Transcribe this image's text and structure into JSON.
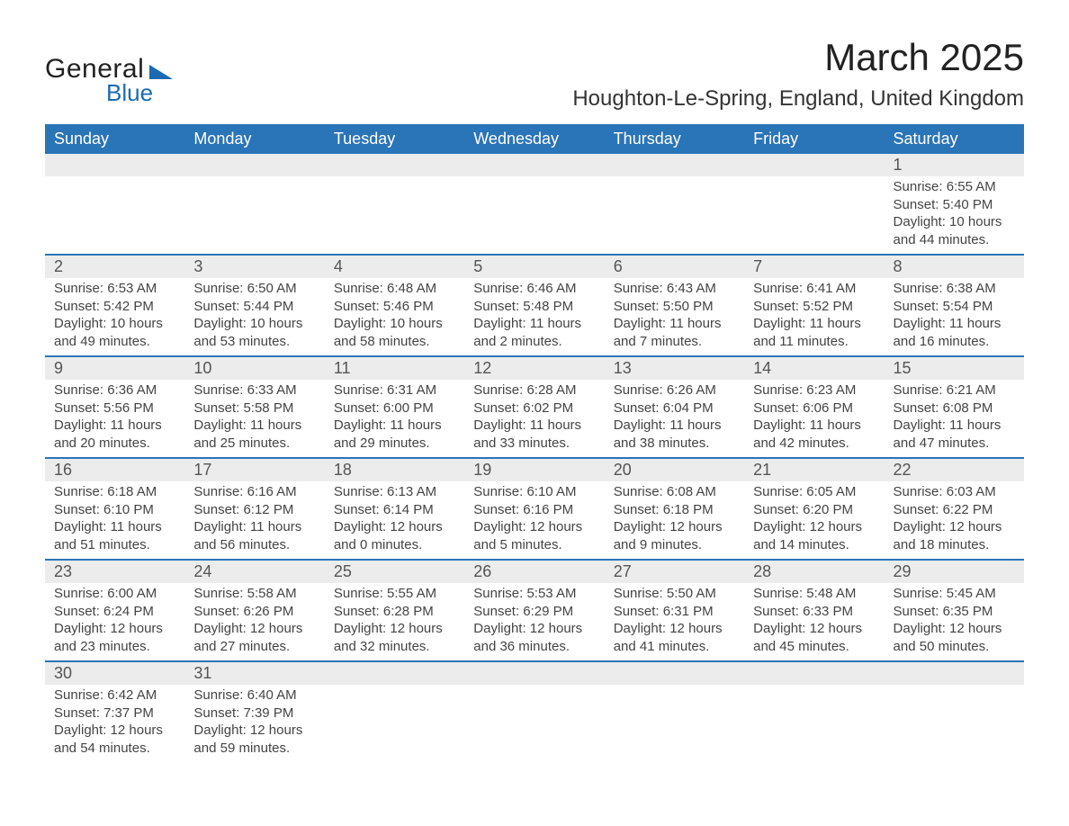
{
  "brand": {
    "line1": "General",
    "line2": "Blue"
  },
  "title": "March 2025",
  "location": "Houghton-Le-Spring, England, United Kingdom",
  "colors": {
    "header_bg": "#2a74b8",
    "header_fg": "#ffffff",
    "row_stripe": "#ececec",
    "row_border": "#2a74b8",
    "text": "#444444",
    "logo_accent": "#1a6bb0"
  },
  "typography": {
    "title_fontsize": 42,
    "location_fontsize": 24,
    "header_fontsize": 18,
    "daynum_fontsize": 18,
    "body_fontsize": 15
  },
  "weekdays": [
    "Sunday",
    "Monday",
    "Tuesday",
    "Wednesday",
    "Thursday",
    "Friday",
    "Saturday"
  ],
  "weeks": [
    [
      null,
      null,
      null,
      null,
      null,
      null,
      {
        "n": "1",
        "sunrise": "6:55 AM",
        "sunset": "5:40 PM",
        "daylight": "10 hours and 44 minutes."
      }
    ],
    [
      {
        "n": "2",
        "sunrise": "6:53 AM",
        "sunset": "5:42 PM",
        "daylight": "10 hours and 49 minutes."
      },
      {
        "n": "3",
        "sunrise": "6:50 AM",
        "sunset": "5:44 PM",
        "daylight": "10 hours and 53 minutes."
      },
      {
        "n": "4",
        "sunrise": "6:48 AM",
        "sunset": "5:46 PM",
        "daylight": "10 hours and 58 minutes."
      },
      {
        "n": "5",
        "sunrise": "6:46 AM",
        "sunset": "5:48 PM",
        "daylight": "11 hours and 2 minutes."
      },
      {
        "n": "6",
        "sunrise": "6:43 AM",
        "sunset": "5:50 PM",
        "daylight": "11 hours and 7 minutes."
      },
      {
        "n": "7",
        "sunrise": "6:41 AM",
        "sunset": "5:52 PM",
        "daylight": "11 hours and 11 minutes."
      },
      {
        "n": "8",
        "sunrise": "6:38 AM",
        "sunset": "5:54 PM",
        "daylight": "11 hours and 16 minutes."
      }
    ],
    [
      {
        "n": "9",
        "sunrise": "6:36 AM",
        "sunset": "5:56 PM",
        "daylight": "11 hours and 20 minutes."
      },
      {
        "n": "10",
        "sunrise": "6:33 AM",
        "sunset": "5:58 PM",
        "daylight": "11 hours and 25 minutes."
      },
      {
        "n": "11",
        "sunrise": "6:31 AM",
        "sunset": "6:00 PM",
        "daylight": "11 hours and 29 minutes."
      },
      {
        "n": "12",
        "sunrise": "6:28 AM",
        "sunset": "6:02 PM",
        "daylight": "11 hours and 33 minutes."
      },
      {
        "n": "13",
        "sunrise": "6:26 AM",
        "sunset": "6:04 PM",
        "daylight": "11 hours and 38 minutes."
      },
      {
        "n": "14",
        "sunrise": "6:23 AM",
        "sunset": "6:06 PM",
        "daylight": "11 hours and 42 minutes."
      },
      {
        "n": "15",
        "sunrise": "6:21 AM",
        "sunset": "6:08 PM",
        "daylight": "11 hours and 47 minutes."
      }
    ],
    [
      {
        "n": "16",
        "sunrise": "6:18 AM",
        "sunset": "6:10 PM",
        "daylight": "11 hours and 51 minutes."
      },
      {
        "n": "17",
        "sunrise": "6:16 AM",
        "sunset": "6:12 PM",
        "daylight": "11 hours and 56 minutes."
      },
      {
        "n": "18",
        "sunrise": "6:13 AM",
        "sunset": "6:14 PM",
        "daylight": "12 hours and 0 minutes."
      },
      {
        "n": "19",
        "sunrise": "6:10 AM",
        "sunset": "6:16 PM",
        "daylight": "12 hours and 5 minutes."
      },
      {
        "n": "20",
        "sunrise": "6:08 AM",
        "sunset": "6:18 PM",
        "daylight": "12 hours and 9 minutes."
      },
      {
        "n": "21",
        "sunrise": "6:05 AM",
        "sunset": "6:20 PM",
        "daylight": "12 hours and 14 minutes."
      },
      {
        "n": "22",
        "sunrise": "6:03 AM",
        "sunset": "6:22 PM",
        "daylight": "12 hours and 18 minutes."
      }
    ],
    [
      {
        "n": "23",
        "sunrise": "6:00 AM",
        "sunset": "6:24 PM",
        "daylight": "12 hours and 23 minutes."
      },
      {
        "n": "24",
        "sunrise": "5:58 AM",
        "sunset": "6:26 PM",
        "daylight": "12 hours and 27 minutes."
      },
      {
        "n": "25",
        "sunrise": "5:55 AM",
        "sunset": "6:28 PM",
        "daylight": "12 hours and 32 minutes."
      },
      {
        "n": "26",
        "sunrise": "5:53 AM",
        "sunset": "6:29 PM",
        "daylight": "12 hours and 36 minutes."
      },
      {
        "n": "27",
        "sunrise": "5:50 AM",
        "sunset": "6:31 PM",
        "daylight": "12 hours and 41 minutes."
      },
      {
        "n": "28",
        "sunrise": "5:48 AM",
        "sunset": "6:33 PM",
        "daylight": "12 hours and 45 minutes."
      },
      {
        "n": "29",
        "sunrise": "5:45 AM",
        "sunset": "6:35 PM",
        "daylight": "12 hours and 50 minutes."
      }
    ],
    [
      {
        "n": "30",
        "sunrise": "6:42 AM",
        "sunset": "7:37 PM",
        "daylight": "12 hours and 54 minutes."
      },
      {
        "n": "31",
        "sunrise": "6:40 AM",
        "sunset": "7:39 PM",
        "daylight": "12 hours and 59 minutes."
      },
      null,
      null,
      null,
      null,
      null
    ]
  ],
  "labels": {
    "sunrise": "Sunrise: ",
    "sunset": "Sunset: ",
    "daylight": "Daylight: "
  }
}
